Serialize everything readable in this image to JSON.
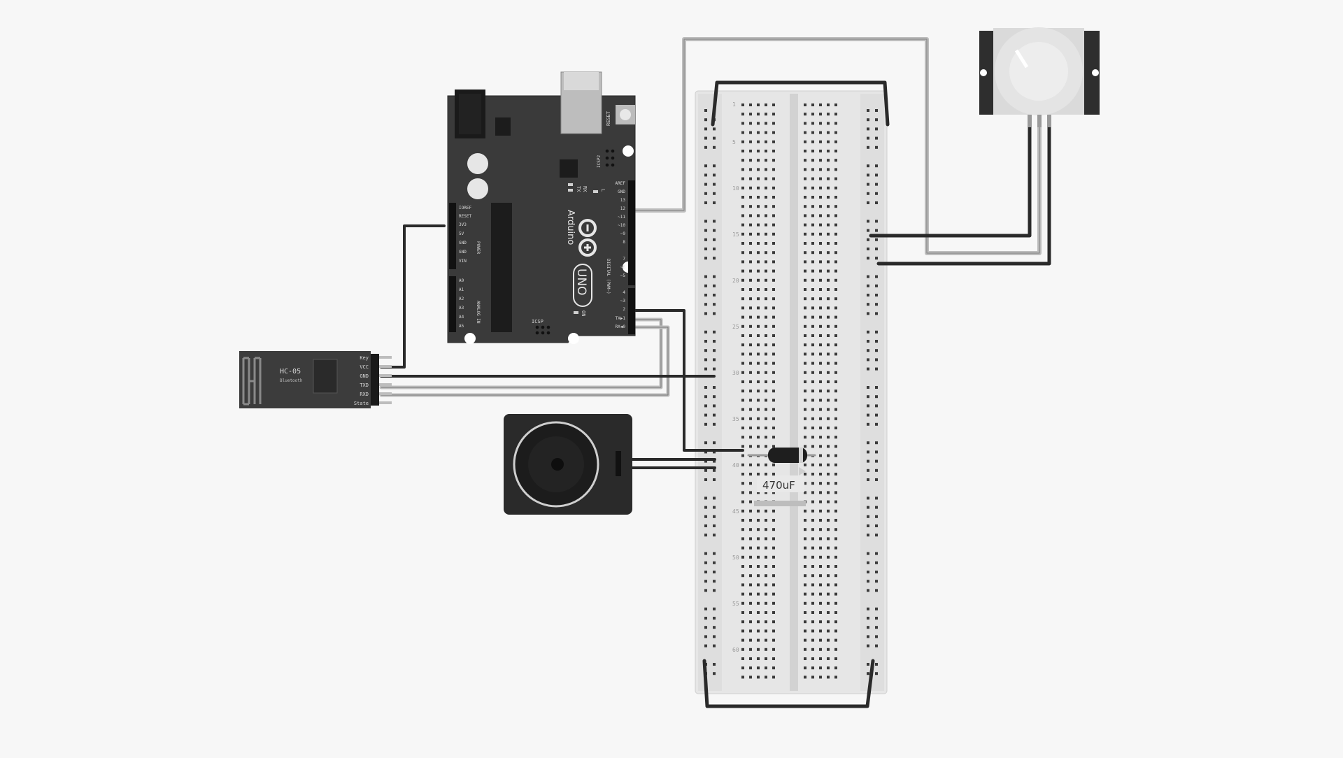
{
  "arduino": {
    "brand": "Arduino",
    "model": "UNO",
    "icsp_label": "ICSP",
    "reset_label": "RESET",
    "icsp2_label": "ICSP2",
    "tx_led": "TX",
    "rx_led": "RX",
    "l_led": "L",
    "on_label": "ON",
    "digital_label": "DIGITAL (PWM~)",
    "power_label": "POWER",
    "analog_label": "ANALOG IN",
    "power_pins": [
      "IOREF",
      "RESET",
      "3V3",
      "5V",
      "GND",
      "GND",
      "VIN"
    ],
    "analog_pins": [
      "A0",
      "A1",
      "A2",
      "A3",
      "A4",
      "A5"
    ],
    "digital_pins": [
      "AREF",
      "GND",
      "13",
      "12",
      "~11",
      "~10",
      "~9",
      "8",
      "7",
      "~6",
      "~5",
      "4",
      "~3",
      "2",
      "TX▶1",
      "RX◀0"
    ]
  },
  "hc05": {
    "name": "HC-05",
    "subtitle": "Bluetooth",
    "pins": [
      "Key",
      "VCC",
      "GND",
      "TXD",
      "RXD",
      "State"
    ]
  },
  "capacitor": {
    "value_label": "470uF"
  },
  "breadboard": {
    "row_numbers": [
      "1",
      "5",
      "10",
      "15",
      "20",
      "25",
      "30",
      "35",
      "40",
      "45",
      "50",
      "55",
      "60"
    ]
  },
  "colors": {
    "background": "#f7f7f7",
    "board": "#3a3a3a",
    "breadboard": "#e8e8e8",
    "wire_dark": "#2a2a2a",
    "wire_light": "#bdbdbd"
  }
}
